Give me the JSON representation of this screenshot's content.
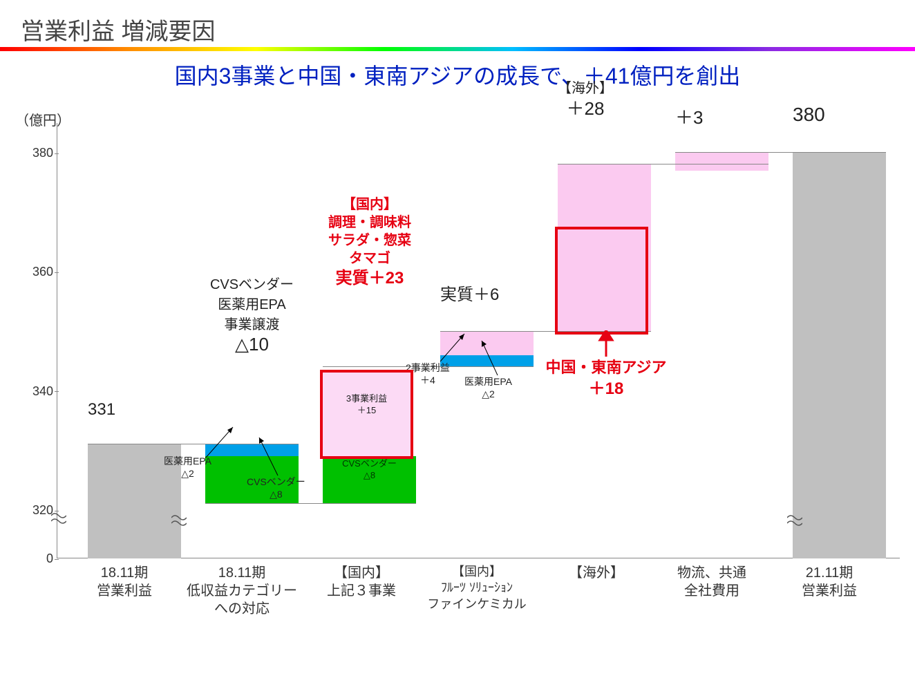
{
  "title": "営業利益 増減要因",
  "subtitle": "国内3事業と中国・東南アジアの成長で、＋41億円を創出",
  "unit": "（億円）",
  "chart": {
    "type": "waterfall",
    "y_axis": {
      "ticks": [
        0,
        320,
        340,
        360,
        380
      ],
      "break_between": [
        0,
        320
      ],
      "label_fontsize": 18
    },
    "colors": {
      "gray": "#c0c0c0",
      "green": "#00c000",
      "blue": "#00a0e8",
      "pink": "#fbcaf0",
      "pink_border": "#fcdaf5",
      "red_stroke": "#e60012",
      "text": "#333333",
      "background": "#ffffff"
    },
    "categories": [
      {
        "label": "18.11期\n営業利益",
        "top_label": "331"
      },
      {
        "label": "18.11期\n低収益カテゴリー\nへの対応",
        "top_label": "CVSベンダー\n医薬用EPA\n事業譲渡\n△10"
      },
      {
        "label": "【国内】\n上記３事業",
        "top_label": ""
      },
      {
        "label": "【国内】\nﾌﾙｰﾂ ｿﾘｭｰｼｮﾝ\nファインケミカル",
        "top_label": "実質＋6"
      },
      {
        "label": "【海外】",
        "top_label": "【海外】\n＋28"
      },
      {
        "label": "物流、共通\n全社費用",
        "top_label": "＋3"
      },
      {
        "label": "21.11期\n営業利益",
        "top_label": "380"
      }
    ],
    "segments": {
      "col1": {
        "start": 0,
        "end": 331,
        "break_render_end": 331
      },
      "col2": {
        "green": {
          "from": 321,
          "to": 329,
          "label": "CVSベンダー\n△8"
        },
        "blue": {
          "from": 329,
          "to": 331,
          "label": "医薬用EPA\n△2"
        }
      },
      "col3": {
        "green": {
          "from": 321,
          "to": 329,
          "label": "CVSベンダー\n△8"
        },
        "pink": {
          "from": 329,
          "to": 344,
          "label": "3事業利益\n＋15",
          "bordered": true
        }
      },
      "col4": {
        "blue": {
          "from": 344,
          "to": 346,
          "label": "医薬用EPA\n△2"
        },
        "pink": {
          "from": 346,
          "to": 350,
          "label": "2事業利益\n＋4"
        }
      },
      "col5": {
        "pink": {
          "from": 350,
          "to": 378
        },
        "pink_border": {
          "from": 350,
          "to": 368
        }
      },
      "col6": {
        "pink": {
          "from": 377,
          "to": 380
        }
      },
      "col7": {
        "start": 0,
        "end": 380
      }
    },
    "callouts": {
      "epa2": "医薬用EPA\n△2",
      "cvs8": "CVSベンダー\n△8",
      "business3": "3事業利益\n＋15",
      "cvs8b": "CVSベンダー\n△8",
      "business2": "2事業利益\n＋4",
      "epa2b": "医薬用EPA\n△2"
    },
    "red_annotations": {
      "domestic": {
        "lines": [
          "【国内】",
          "調理・調味料",
          "サラダ・惣菜",
          "タマゴ",
          "実質＋23"
        ],
        "value_fontsize": 24
      },
      "overseas": {
        "lines": [
          "中国・東南アジア",
          "＋18"
        ],
        "value_fontsize": 24
      }
    }
  },
  "xlabels": [
    "18.11期\n営業利益",
    "18.11期\n低収益カテゴリー\nへの対応",
    "【国内】\n上記３事業",
    "【国内】\nﾌﾙｰﾂ ｿﾘｭｰｼｮﾝ\nファインケミカル",
    "【海外】",
    "物流、共通\n全社費用",
    "21.11期\n営業利益"
  ]
}
